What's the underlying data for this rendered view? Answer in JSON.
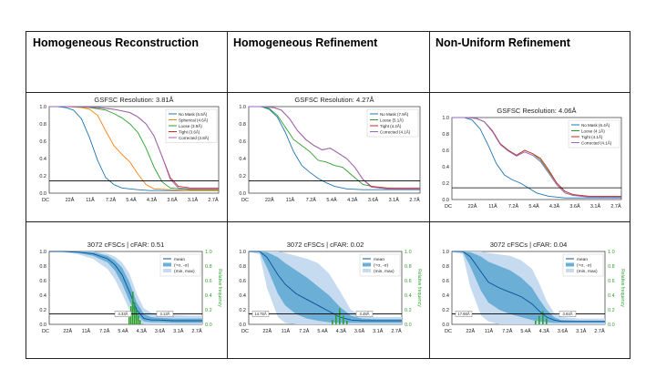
{
  "headers": [
    "Homogeneous Reconstruction",
    "Homogeneous Refinement",
    "Non-Uniform Refinement"
  ],
  "x_ticks": [
    "DC",
    "22Å",
    "11Å",
    "7.2Å",
    "5.4Å",
    "4.3Å",
    "3.6Å",
    "3.1Å",
    "2.7Å"
  ],
  "colors": {
    "blue": "#1f77b4",
    "orange": "#ff7f0e",
    "green": "#2ca02c",
    "red": "#d62728",
    "purple": "#9467bd",
    "ref": "#000000",
    "band_light": "#c6dbef",
    "band_dark": "#6baed6",
    "mean": "#08519c",
    "hist": "#2ca02c"
  },
  "chart_data": [
    {
      "type": "line",
      "panel": "Homogeneous Reconstruction GSFSC",
      "title": "GSFSC Resolution: 3.81Å",
      "xlabel": "",
      "ylabel": "",
      "xlim": [
        0,
        0.42
      ],
      "ylim": [
        0,
        1.0
      ],
      "yticks": [
        "0.0",
        "0.2",
        "0.4",
        "0.6",
        "0.8",
        "1.0"
      ],
      "threshold": 0.143,
      "legend_position": "top-right",
      "series": [
        {
          "name": "No Mask (5.5Å)",
          "color": "blue",
          "x": [
            0,
            0.02,
            0.04,
            0.06,
            0.08,
            0.1,
            0.12,
            0.14,
            0.16,
            0.18,
            0.2,
            0.22,
            0.25,
            0.3,
            0.35,
            0.4,
            0.42
          ],
          "y": [
            1,
            1,
            0.99,
            0.96,
            0.86,
            0.64,
            0.38,
            0.18,
            0.1,
            0.06,
            0.05,
            0.04,
            0.03,
            0.03,
            0.03,
            0.03,
            0.03
          ]
        },
        {
          "name": "Spherical (4.6Å)",
          "color": "orange",
          "x": [
            0,
            0.04,
            0.08,
            0.1,
            0.12,
            0.14,
            0.16,
            0.18,
            0.2,
            0.22,
            0.24,
            0.26,
            0.3,
            0.35,
            0.4,
            0.42
          ],
          "y": [
            1,
            1,
            0.99,
            0.97,
            0.9,
            0.72,
            0.55,
            0.45,
            0.36,
            0.22,
            0.1,
            0.05,
            0.04,
            0.03,
            0.03,
            0.03
          ]
        },
        {
          "name": "Loose (3.9Å)",
          "color": "green",
          "x": [
            0,
            0.06,
            0.1,
            0.14,
            0.16,
            0.18,
            0.2,
            0.22,
            0.24,
            0.26,
            0.28,
            0.3,
            0.35,
            0.4,
            0.42
          ],
          "y": [
            1,
            1,
            0.99,
            0.96,
            0.92,
            0.87,
            0.8,
            0.7,
            0.52,
            0.3,
            0.13,
            0.06,
            0.04,
            0.04,
            0.04
          ]
        },
        {
          "name": "Tight (3.6Å)",
          "color": "red",
          "x": [
            0,
            0.08,
            0.12,
            0.16,
            0.2,
            0.22,
            0.24,
            0.26,
            0.28,
            0.3,
            0.32,
            0.35,
            0.4,
            0.42
          ],
          "y": [
            1,
            1,
            0.99,
            0.97,
            0.93,
            0.88,
            0.8,
            0.66,
            0.42,
            0.18,
            0.08,
            0.06,
            0.06,
            0.06
          ]
        },
        {
          "name": "Corrected (3.8Å)",
          "color": "purple",
          "x": [
            0,
            0.08,
            0.12,
            0.16,
            0.2,
            0.22,
            0.24,
            0.26,
            0.28,
            0.3,
            0.32,
            0.35,
            0.4,
            0.42
          ],
          "y": [
            1,
            1,
            0.99,
            0.97,
            0.93,
            0.88,
            0.8,
            0.66,
            0.42,
            0.16,
            0.06,
            0.05,
            0.05,
            0.05
          ]
        }
      ]
    },
    {
      "type": "line",
      "panel": "Homogeneous Refinement GSFSC",
      "title": "GSFSC Resolution: 4.27Å",
      "xlabel": "",
      "ylabel": "",
      "xlim": [
        0,
        0.42
      ],
      "ylim": [
        0,
        1.0
      ],
      "yticks": [
        "0.0",
        "0.2",
        "0.4",
        "0.6",
        "0.8",
        "1.0"
      ],
      "threshold": 0.143,
      "legend_position": "top-right",
      "series": [
        {
          "name": "No Mask (7.9Å)",
          "color": "blue",
          "x": [
            0,
            0.03,
            0.05,
            0.07,
            0.09,
            0.11,
            0.13,
            0.15,
            0.17,
            0.19,
            0.21,
            0.24,
            0.28,
            0.32,
            0.36,
            0.42
          ],
          "y": [
            1,
            1,
            0.97,
            0.88,
            0.7,
            0.48,
            0.32,
            0.24,
            0.17,
            0.12,
            0.08,
            0.05,
            0.04,
            0.04,
            0.04,
            0.04
          ]
        },
        {
          "name": "Loose (5.1Å)",
          "color": "green",
          "x": [
            0,
            0.03,
            0.05,
            0.07,
            0.09,
            0.11,
            0.13,
            0.15,
            0.17,
            0.19,
            0.21,
            0.23,
            0.25,
            0.28,
            0.32,
            0.36,
            0.42
          ],
          "y": [
            1,
            1,
            0.98,
            0.9,
            0.76,
            0.62,
            0.55,
            0.48,
            0.38,
            0.36,
            0.32,
            0.3,
            0.22,
            0.1,
            0.06,
            0.05,
            0.05
          ]
        },
        {
          "name": "Tight (4.2Å)",
          "color": "red",
          "x": [
            0,
            0.04,
            0.06,
            0.08,
            0.1,
            0.12,
            0.14,
            0.16,
            0.18,
            0.2,
            0.22,
            0.24,
            0.26,
            0.28,
            0.3,
            0.34,
            0.38,
            0.42
          ],
          "y": [
            1,
            1,
            0.99,
            0.96,
            0.86,
            0.72,
            0.62,
            0.55,
            0.5,
            0.52,
            0.46,
            0.4,
            0.3,
            0.16,
            0.08,
            0.06,
            0.06,
            0.06
          ]
        },
        {
          "name": "Corrected (4.1Å)",
          "color": "purple",
          "x": [
            0,
            0.04,
            0.06,
            0.08,
            0.1,
            0.12,
            0.14,
            0.16,
            0.18,
            0.2,
            0.22,
            0.24,
            0.26,
            0.28,
            0.3,
            0.34,
            0.38,
            0.42
          ],
          "y": [
            1,
            1,
            0.99,
            0.96,
            0.86,
            0.72,
            0.62,
            0.55,
            0.5,
            0.52,
            0.46,
            0.4,
            0.3,
            0.16,
            0.07,
            0.05,
            0.05,
            0.05
          ]
        }
      ]
    },
    {
      "type": "line",
      "panel": "Non-Uniform Refinement GSFSC",
      "title": "GSFSC Resolution: 4.06Å",
      "xlabel": "",
      "ylabel": "",
      "xlim": [
        0,
        0.42
      ],
      "ylim": [
        0,
        1.0
      ],
      "yticks": [
        "0.0",
        "0.2",
        "0.4",
        "0.6",
        "0.8",
        "1.0"
      ],
      "threshold": 0.143,
      "legend_position": "top-right",
      "series": [
        {
          "name": "No Mask (6.4Å)",
          "color": "blue",
          "x": [
            0,
            0.03,
            0.05,
            0.07,
            0.09,
            0.11,
            0.13,
            0.15,
            0.17,
            0.19,
            0.21,
            0.24,
            0.28,
            0.32,
            0.36,
            0.42
          ],
          "y": [
            1,
            1,
            0.97,
            0.86,
            0.66,
            0.44,
            0.3,
            0.24,
            0.2,
            0.14,
            0.08,
            0.04,
            0.02,
            0.02,
            0.02,
            0.02
          ]
        },
        {
          "name": "Loose (4.1Å)",
          "color": "green",
          "x": [
            0,
            0.04,
            0.06,
            0.08,
            0.1,
            0.12,
            0.14,
            0.16,
            0.18,
            0.2,
            0.22,
            0.24,
            0.26,
            0.28,
            0.3,
            0.34,
            0.38,
            0.42
          ],
          "y": [
            1,
            1,
            0.99,
            0.95,
            0.84,
            0.68,
            0.6,
            0.54,
            0.6,
            0.56,
            0.48,
            0.34,
            0.2,
            0.1,
            0.06,
            0.04,
            0.04,
            0.04
          ]
        },
        {
          "name": "Tight (4.1Å)",
          "color": "red",
          "x": [
            0,
            0.04,
            0.06,
            0.08,
            0.1,
            0.12,
            0.14,
            0.16,
            0.18,
            0.2,
            0.22,
            0.24,
            0.26,
            0.28,
            0.3,
            0.34,
            0.38,
            0.42
          ],
          "y": [
            1,
            1,
            0.99,
            0.95,
            0.84,
            0.68,
            0.6,
            0.54,
            0.6,
            0.56,
            0.5,
            0.36,
            0.2,
            0.1,
            0.06,
            0.04,
            0.04,
            0.04
          ]
        },
        {
          "name": "Corrected (4.1Å)",
          "color": "purple",
          "x": [
            0,
            0.04,
            0.06,
            0.08,
            0.1,
            0.12,
            0.14,
            0.16,
            0.18,
            0.2,
            0.22,
            0.24,
            0.26,
            0.28,
            0.3,
            0.34,
            0.38,
            0.42
          ],
          "y": [
            1,
            1,
            0.99,
            0.95,
            0.83,
            0.67,
            0.59,
            0.53,
            0.58,
            0.54,
            0.46,
            0.32,
            0.18,
            0.08,
            0.05,
            0.03,
            0.03,
            0.03
          ]
        }
      ]
    },
    {
      "type": "area",
      "panel": "Homogeneous Reconstruction cFSC",
      "title": "3072 cFSCs | cFAR: 0.51",
      "xlim": [
        0,
        0.42
      ],
      "ylim": [
        0,
        1.0
      ],
      "yticks": [
        "0.0",
        "0.2",
        "0.4",
        "0.6",
        "0.8",
        "1.0"
      ],
      "y2label": "Relative frequency",
      "threshold": 0.143,
      "legend_position": "top-right",
      "legend": [
        "mean",
        "(+σ, -σ)",
        "(min, max)"
      ],
      "markers": [
        "4.33Å",
        "3.13Å"
      ],
      "x": [
        0,
        0.04,
        0.08,
        0.12,
        0.16,
        0.18,
        0.2,
        0.22,
        0.24,
        0.26,
        0.28,
        0.3,
        0.34,
        0.38,
        0.42
      ],
      "mean": [
        1,
        1,
        0.99,
        0.97,
        0.9,
        0.82,
        0.68,
        0.45,
        0.2,
        0.08,
        0.06,
        0.06,
        0.05,
        0.05,
        0.05
      ],
      "sd_upper": [
        1,
        1,
        1,
        0.99,
        0.94,
        0.88,
        0.78,
        0.58,
        0.3,
        0.14,
        0.1,
        0.09,
        0.08,
        0.08,
        0.08
      ],
      "sd_lower": [
        1,
        1,
        0.98,
        0.94,
        0.85,
        0.74,
        0.56,
        0.32,
        0.12,
        0.04,
        0.03,
        0.03,
        0.02,
        0.02,
        0.02
      ],
      "max": [
        1,
        1,
        1,
        1,
        0.97,
        0.93,
        0.85,
        0.7,
        0.42,
        0.22,
        0.16,
        0.14,
        0.13,
        0.12,
        0.12
      ],
      "min": [
        1,
        0.99,
        0.96,
        0.9,
        0.76,
        0.62,
        0.42,
        0.2,
        0.06,
        0.0,
        0.0,
        0.0,
        0.0,
        0.0,
        0.0
      ],
      "histogram_x": [
        0.22,
        0.225,
        0.23,
        0.235,
        0.24,
        0.245,
        0.25
      ],
      "histogram_freq": [
        0.1,
        0.25,
        0.45,
        0.3,
        0.2,
        0.12,
        0.06
      ]
    },
    {
      "type": "area",
      "panel": "Homogeneous Refinement cFSC",
      "title": "3072 cFSCs | cFAR: 0.02",
      "xlim": [
        0,
        0.42
      ],
      "ylim": [
        0,
        1.0
      ],
      "yticks": [
        "0.0",
        "0.2",
        "0.4",
        "0.6",
        "0.8",
        "1.0"
      ],
      "y2label": "Relative frequency",
      "threshold": 0.143,
      "legend_position": "top-right",
      "legend": [
        "mean",
        "(+σ, -σ)",
        "(min, max)"
      ],
      "markers": [
        "14.75Å",
        "3.48Å"
      ],
      "x": [
        0,
        0.03,
        0.05,
        0.08,
        0.1,
        0.13,
        0.16,
        0.19,
        0.22,
        0.25,
        0.28,
        0.31,
        0.35,
        0.42
      ],
      "mean": [
        1,
        1,
        0.92,
        0.68,
        0.55,
        0.42,
        0.34,
        0.26,
        0.18,
        0.1,
        0.06,
        0.05,
        0.05,
        0.05
      ],
      "sd_upper": [
        1,
        1,
        0.99,
        0.92,
        0.84,
        0.74,
        0.64,
        0.52,
        0.4,
        0.24,
        0.12,
        0.08,
        0.07,
        0.07
      ],
      "sd_lower": [
        1,
        0.99,
        0.78,
        0.42,
        0.26,
        0.14,
        0.08,
        0.05,
        0.03,
        0.02,
        0.02,
        0.02,
        0.02,
        0.02
      ],
      "max": [
        1,
        1,
        1,
        1,
        0.98,
        0.94,
        0.9,
        0.84,
        0.7,
        0.46,
        0.2,
        0.12,
        0.1,
        0.1
      ],
      "min": [
        1,
        0.96,
        0.5,
        0.1,
        0.02,
        0.0,
        0.0,
        0.0,
        0.0,
        0.0,
        0.0,
        0.0,
        0.0,
        0.0
      ],
      "histogram_x": [
        0.23,
        0.24,
        0.25,
        0.26,
        0.27
      ],
      "histogram_freq": [
        0.06,
        0.14,
        0.22,
        0.12,
        0.05
      ]
    },
    {
      "type": "area",
      "panel": "Non-Uniform Refinement cFSC",
      "title": "3072 cFSCs | cFAR: 0.04",
      "xlim": [
        0,
        0.42
      ],
      "ylim": [
        0,
        1.0
      ],
      "yticks": [
        "0.0",
        "0.2",
        "0.4",
        "0.6",
        "0.8",
        "1.0"
      ],
      "y2label": "Relative frequency",
      "threshold": 0.143,
      "legend_position": "top-right",
      "legend": [
        "mean",
        "(+σ, -σ)",
        "(min, max)"
      ],
      "markers": [
        "17.66Å",
        "3.64Å"
      ],
      "x": [
        0,
        0.03,
        0.05,
        0.08,
        0.1,
        0.13,
        0.16,
        0.19,
        0.22,
        0.24,
        0.26,
        0.28,
        0.3,
        0.35,
        0.42
      ],
      "mean": [
        1,
        1,
        0.93,
        0.72,
        0.58,
        0.5,
        0.44,
        0.38,
        0.28,
        0.18,
        0.1,
        0.06,
        0.04,
        0.04,
        0.04
      ],
      "sd_upper": [
        1,
        1,
        0.99,
        0.93,
        0.86,
        0.8,
        0.74,
        0.64,
        0.5,
        0.34,
        0.2,
        0.1,
        0.06,
        0.05,
        0.05
      ],
      "sd_lower": [
        1,
        0.99,
        0.8,
        0.46,
        0.3,
        0.2,
        0.14,
        0.1,
        0.06,
        0.04,
        0.03,
        0.02,
        0.02,
        0.02,
        0.02
      ],
      "max": [
        1,
        1,
        1,
        1,
        0.98,
        0.96,
        0.94,
        0.88,
        0.76,
        0.56,
        0.32,
        0.16,
        0.1,
        0.08,
        0.08
      ],
      "min": [
        1,
        0.96,
        0.52,
        0.12,
        0.04,
        0.0,
        0.0,
        0.0,
        0.0,
        0.0,
        0.0,
        0.0,
        0.0,
        0.0,
        0.0
      ],
      "histogram_x": [
        0.23,
        0.24,
        0.25,
        0.26
      ],
      "histogram_freq": [
        0.05,
        0.12,
        0.18,
        0.08
      ]
    }
  ]
}
